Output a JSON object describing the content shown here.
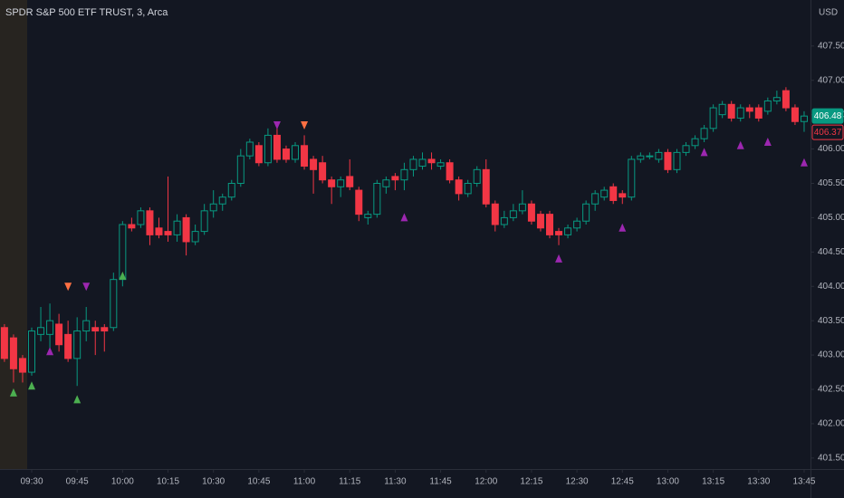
{
  "chart_data": {
    "type": "candlestick",
    "title": "SPDR S&P 500 ETF TRUST, 3, Arca",
    "y_axis_label": "USD",
    "categories": [
      null,
      null,
      null,
      "09:30",
      null,
      null,
      null,
      null,
      "09:45",
      null,
      null,
      null,
      null,
      "10:00",
      null,
      null,
      null,
      null,
      "10:15",
      null,
      null,
      null,
      null,
      "10:30",
      null,
      null,
      null,
      null,
      "10:45",
      null,
      null,
      null,
      null,
      "11:00",
      null,
      null,
      null,
      null,
      "11:15",
      null,
      null,
      null,
      null,
      "11:30",
      null,
      null,
      null,
      null,
      "11:45",
      null,
      null,
      null,
      null,
      "12:00",
      null,
      null,
      null,
      null,
      "12:15",
      null,
      null,
      null,
      null,
      "12:30",
      null,
      null,
      null,
      null,
      "12:45",
      null,
      null,
      null,
      null,
      "13:00",
      null,
      null,
      null,
      null,
      "13:15",
      null,
      null,
      null,
      null,
      "13:30",
      null,
      null,
      null,
      null,
      "13:45"
    ],
    "open": [
      403.4,
      403.25,
      402.95,
      402.75,
      403.3,
      403.3,
      403.45,
      403.3,
      402.95,
      403.35,
      403.4,
      403.4,
      403.4,
      404.1,
      404.9,
      404.9,
      405.1,
      404.85,
      404.8,
      404.75,
      405.0,
      404.65,
      404.8,
      405.1,
      405.2,
      405.3,
      405.5,
      405.9,
      406.05,
      405.8,
      406.2,
      406.0,
      405.85,
      406.05,
      405.85,
      405.8,
      405.55,
      405.45,
      405.6,
      405.4,
      405.0,
      405.05,
      405.45,
      405.6,
      405.55,
      405.7,
      405.75,
      405.85,
      405.75,
      405.8,
      405.55,
      405.35,
      405.5,
      405.7,
      405.2,
      404.9,
      405.0,
      405.1,
      405.2,
      405.05,
      405.05,
      404.8,
      404.75,
      404.85,
      404.95,
      405.2,
      405.3,
      405.45,
      405.35,
      405.3,
      405.85,
      405.9,
      405.85,
      405.95,
      405.7,
      405.95,
      406.05,
      406.15,
      406.3,
      406.5,
      406.65,
      406.45,
      406.6,
      406.6,
      406.55,
      406.7,
      406.85,
      406.6,
      406.4
    ],
    "high": [
      403.45,
      403.3,
      403.0,
      403.4,
      403.7,
      403.75,
      403.6,
      403.5,
      403.55,
      403.7,
      403.5,
      403.45,
      404.2,
      404.95,
      405.0,
      405.15,
      405.15,
      405.0,
      405.6,
      405.05,
      405.05,
      404.9,
      405.2,
      405.4,
      405.35,
      405.55,
      406.0,
      406.15,
      406.1,
      406.3,
      406.3,
      406.05,
      406.1,
      406.2,
      405.9,
      405.9,
      405.6,
      405.6,
      405.85,
      405.45,
      405.1,
      405.55,
      405.6,
      405.65,
      405.8,
      405.9,
      405.95,
      405.95,
      405.85,
      405.85,
      405.6,
      405.55,
      405.75,
      405.85,
      405.25,
      405.1,
      405.2,
      405.4,
      405.25,
      405.1,
      405.1,
      404.85,
      404.9,
      405.0,
      405.25,
      405.4,
      405.45,
      405.5,
      405.4,
      405.9,
      405.95,
      405.95,
      406.0,
      406.0,
      406.0,
      406.1,
      406.2,
      406.35,
      406.65,
      406.7,
      406.7,
      406.65,
      406.65,
      406.65,
      406.75,
      406.85,
      406.9,
      406.65,
      406.55
    ],
    "low": [
      402.9,
      402.6,
      402.6,
      402.7,
      403.2,
      403.1,
      403.05,
      402.9,
      402.55,
      403.2,
      403.0,
      403.05,
      403.35,
      404.0,
      404.8,
      404.85,
      404.6,
      404.7,
      404.65,
      404.65,
      404.45,
      404.6,
      404.75,
      405.0,
      405.1,
      405.25,
      405.45,
      405.85,
      405.75,
      405.75,
      405.8,
      405.8,
      405.8,
      405.7,
      405.35,
      405.5,
      405.2,
      405.3,
      405.4,
      404.95,
      404.9,
      405.0,
      405.35,
      405.4,
      405.4,
      405.6,
      405.7,
      405.7,
      405.7,
      405.5,
      405.25,
      405.3,
      405.45,
      405.15,
      404.8,
      404.85,
      404.95,
      405.05,
      404.9,
      404.8,
      404.7,
      404.6,
      404.7,
      404.8,
      404.9,
      405.1,
      405.25,
      405.2,
      405.2,
      405.25,
      405.8,
      405.85,
      405.8,
      405.65,
      405.65,
      405.9,
      406.0,
      406.1,
      406.25,
      406.45,
      406.4,
      406.4,
      406.45,
      406.4,
      406.5,
      406.65,
      406.55,
      406.35,
      406.25
    ],
    "close": [
      402.95,
      402.8,
      402.75,
      403.35,
      403.4,
      403.5,
      403.15,
      402.95,
      403.35,
      403.5,
      403.35,
      403.35,
      404.1,
      404.9,
      404.85,
      405.1,
      404.75,
      404.75,
      404.75,
      404.95,
      404.65,
      404.8,
      405.1,
      405.2,
      405.3,
      405.5,
      405.9,
      406.1,
      405.8,
      406.2,
      405.85,
      405.85,
      406.05,
      405.75,
      405.7,
      405.55,
      405.45,
      405.55,
      405.45,
      405.05,
      405.05,
      405.5,
      405.55,
      405.55,
      405.7,
      405.85,
      405.85,
      405.8,
      405.8,
      405.55,
      405.35,
      405.5,
      405.7,
      405.2,
      404.9,
      405.0,
      405.1,
      405.2,
      404.95,
      404.85,
      404.75,
      404.75,
      404.85,
      404.95,
      405.2,
      405.35,
      405.4,
      405.25,
      405.3,
      405.85,
      405.9,
      405.9,
      405.95,
      405.7,
      405.95,
      406.05,
      406.15,
      406.3,
      406.6,
      406.65,
      406.45,
      406.6,
      406.55,
      406.45,
      406.7,
      406.75,
      406.6,
      406.4,
      406.48
    ],
    "up_color": "#089981",
    "down_color": "#f23645",
    "markers": [
      {
        "index": 1,
        "price": 402.45,
        "shape": "up",
        "color": "#4caf50"
      },
      {
        "index": 3,
        "price": 402.55,
        "shape": "up",
        "color": "#4caf50"
      },
      {
        "index": 5,
        "price": 403.05,
        "shape": "up",
        "color": "#9c27b0"
      },
      {
        "index": 7,
        "price": 404.0,
        "shape": "down",
        "color": "#ff7043"
      },
      {
        "index": 8,
        "price": 402.35,
        "shape": "up",
        "color": "#4caf50"
      },
      {
        "index": 9,
        "price": 404.0,
        "shape": "down",
        "color": "#9c27b0"
      },
      {
        "index": 13,
        "price": 404.15,
        "shape": "up",
        "color": "#4caf50"
      },
      {
        "index": 30,
        "price": 406.35,
        "shape": "down",
        "color": "#9c27b0"
      },
      {
        "index": 33,
        "price": 406.35,
        "shape": "down",
        "color": "#ff7043"
      },
      {
        "index": 44,
        "price": 405.0,
        "shape": "up",
        "color": "#9c27b0"
      },
      {
        "index": 61,
        "price": 404.4,
        "shape": "up",
        "color": "#9c27b0"
      },
      {
        "index": 68,
        "price": 404.85,
        "shape": "up",
        "color": "#9c27b0"
      },
      {
        "index": 77,
        "price": 405.95,
        "shape": "up",
        "color": "#9c27b0"
      },
      {
        "index": 81,
        "price": 406.05,
        "shape": "up",
        "color": "#9c27b0"
      },
      {
        "index": 84,
        "price": 406.1,
        "shape": "up",
        "color": "#9c27b0"
      },
      {
        "index": 88,
        "price": 405.8,
        "shape": "up",
        "color": "#9c27b0"
      }
    ],
    "price_labels": [
      {
        "value": 406.48,
        "style": "filled",
        "color": "#089981"
      },
      {
        "value": 406.37,
        "style": "outline",
        "color": "#f23645"
      }
    ],
    "ylim": [
      401.34,
      408.17
    ],
    "yticks": [
      {
        "value": 401.5,
        "label": "401.50"
      },
      {
        "value": 402,
        "label": "402.00"
      },
      {
        "value": 402.5,
        "label": "402.50"
      },
      {
        "value": 403,
        "label": "403.00"
      },
      {
        "value": 403.5,
        "label": "403.50"
      },
      {
        "value": 404,
        "label": "404.00"
      },
      {
        "value": 404.5,
        "label": "404.50"
      },
      {
        "value": 405,
        "label": "405.00"
      },
      {
        "value": 405.5,
        "label": "405.50"
      },
      {
        "value": 406,
        "label": "406.00"
      },
      {
        "value": 406.5,
        "label": "406.50"
      },
      {
        "value": 407,
        "label": "407.00"
      },
      {
        "value": 407.5,
        "label": "407.50"
      }
    ]
  }
}
